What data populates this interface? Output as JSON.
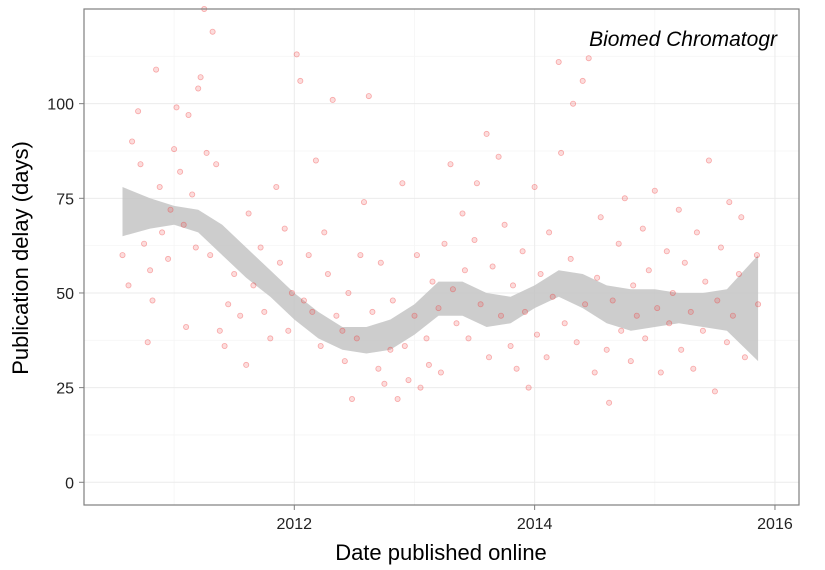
{
  "chart_data": {
    "type": "scatter",
    "title": "Biomed Chromatogr",
    "xlabel": "Date published online",
    "ylabel": "Publication delay (days)",
    "xlim": [
      2010.25,
      2016.2
    ],
    "ylim": [
      -6,
      125
    ],
    "x_ticks": [
      2012,
      2014,
      2016
    ],
    "y_ticks": [
      0,
      25,
      50,
      75,
      100
    ],
    "x_tick_labels": [
      "2012",
      "2014",
      "2016"
    ],
    "y_tick_labels": [
      "0",
      "25",
      "50",
      "75",
      "100"
    ],
    "grid": true,
    "colors": {
      "points": "#ef3b3b",
      "band": "#c4c4c4",
      "border": "#7f7f7f",
      "grid_major": "#ebebeb",
      "grid_minor": "#f5f5f5"
    },
    "scatter_series": [
      {
        "points": [
          [
            2010.57,
            60
          ],
          [
            2010.62,
            52
          ],
          [
            2010.65,
            90
          ],
          [
            2010.7,
            98
          ],
          [
            2010.72,
            84
          ],
          [
            2010.75,
            63
          ],
          [
            2010.78,
            37
          ],
          [
            2010.8,
            56
          ],
          [
            2010.82,
            48
          ],
          [
            2010.85,
            109
          ],
          [
            2010.88,
            78
          ],
          [
            2010.9,
            66
          ],
          [
            2010.95,
            59
          ],
          [
            2010.97,
            72
          ],
          [
            2011.0,
            88
          ],
          [
            2011.02,
            99
          ],
          [
            2011.05,
            82
          ],
          [
            2011.08,
            68
          ],
          [
            2011.1,
            41
          ],
          [
            2011.12,
            97
          ],
          [
            2011.15,
            76
          ],
          [
            2011.18,
            62
          ],
          [
            2011.2,
            104
          ],
          [
            2011.22,
            107
          ],
          [
            2011.25,
            125
          ],
          [
            2011.27,
            87
          ],
          [
            2011.3,
            60
          ],
          [
            2011.32,
            119
          ],
          [
            2011.35,
            84
          ],
          [
            2011.38,
            40
          ],
          [
            2011.42,
            36
          ],
          [
            2011.45,
            47
          ],
          [
            2011.5,
            55
          ],
          [
            2011.55,
            44
          ],
          [
            2011.6,
            31
          ],
          [
            2011.62,
            71
          ],
          [
            2011.66,
            52
          ],
          [
            2011.72,
            62
          ],
          [
            2011.75,
            45
          ],
          [
            2011.8,
            38
          ],
          [
            2011.85,
            78
          ],
          [
            2011.88,
            58
          ],
          [
            2011.92,
            67
          ],
          [
            2011.95,
            40
          ],
          [
            2011.98,
            50
          ],
          [
            2012.02,
            113
          ],
          [
            2012.05,
            106
          ],
          [
            2012.08,
            48
          ],
          [
            2012.12,
            60
          ],
          [
            2012.15,
            45
          ],
          [
            2012.18,
            85
          ],
          [
            2012.22,
            36
          ],
          [
            2012.25,
            66
          ],
          [
            2012.28,
            55
          ],
          [
            2012.32,
            101
          ],
          [
            2012.35,
            44
          ],
          [
            2012.4,
            40
          ],
          [
            2012.42,
            32
          ],
          [
            2012.45,
            50
          ],
          [
            2012.48,
            22
          ],
          [
            2012.52,
            38
          ],
          [
            2012.55,
            60
          ],
          [
            2012.58,
            74
          ],
          [
            2012.62,
            102
          ],
          [
            2012.65,
            45
          ],
          [
            2012.7,
            30
          ],
          [
            2012.72,
            58
          ],
          [
            2012.75,
            26
          ],
          [
            2012.8,
            35
          ],
          [
            2012.82,
            48
          ],
          [
            2012.86,
            22
          ],
          [
            2012.9,
            79
          ],
          [
            2012.92,
            36
          ],
          [
            2012.95,
            27
          ],
          [
            2013.0,
            44
          ],
          [
            2013.02,
            60
          ],
          [
            2013.05,
            25
          ],
          [
            2013.1,
            38
          ],
          [
            2013.12,
            31
          ],
          [
            2013.15,
            53
          ],
          [
            2013.2,
            46
          ],
          [
            2013.22,
            29
          ],
          [
            2013.25,
            63
          ],
          [
            2013.3,
            84
          ],
          [
            2013.32,
            51
          ],
          [
            2013.35,
            42
          ],
          [
            2013.4,
            71
          ],
          [
            2013.42,
            56
          ],
          [
            2013.45,
            38
          ],
          [
            2013.5,
            64
          ],
          [
            2013.52,
            79
          ],
          [
            2013.55,
            47
          ],
          [
            2013.6,
            92
          ],
          [
            2013.62,
            33
          ],
          [
            2013.65,
            57
          ],
          [
            2013.7,
            86
          ],
          [
            2013.72,
            44
          ],
          [
            2013.75,
            68
          ],
          [
            2013.8,
            36
          ],
          [
            2013.82,
            52
          ],
          [
            2013.85,
            30
          ],
          [
            2013.9,
            61
          ],
          [
            2013.92,
            45
          ],
          [
            2013.95,
            25
          ],
          [
            2014.0,
            78
          ],
          [
            2014.02,
            39
          ],
          [
            2014.05,
            55
          ],
          [
            2014.1,
            33
          ],
          [
            2014.12,
            66
          ],
          [
            2014.15,
            49
          ],
          [
            2014.2,
            111
          ],
          [
            2014.22,
            87
          ],
          [
            2014.25,
            42
          ],
          [
            2014.3,
            59
          ],
          [
            2014.32,
            100
          ],
          [
            2014.35,
            37
          ],
          [
            2014.4,
            106
          ],
          [
            2014.42,
            47
          ],
          [
            2014.45,
            112
          ],
          [
            2014.5,
            29
          ],
          [
            2014.52,
            54
          ],
          [
            2014.55,
            70
          ],
          [
            2014.6,
            35
          ],
          [
            2014.62,
            21
          ],
          [
            2014.65,
            48
          ],
          [
            2014.7,
            63
          ],
          [
            2014.72,
            40
          ],
          [
            2014.75,
            75
          ],
          [
            2014.8,
            32
          ],
          [
            2014.82,
            52
          ],
          [
            2014.85,
            44
          ],
          [
            2014.9,
            67
          ],
          [
            2014.92,
            38
          ],
          [
            2014.95,
            56
          ],
          [
            2015.0,
            77
          ],
          [
            2015.02,
            46
          ],
          [
            2015.05,
            29
          ],
          [
            2015.1,
            61
          ],
          [
            2015.12,
            42
          ],
          [
            2015.15,
            50
          ],
          [
            2015.2,
            72
          ],
          [
            2015.22,
            35
          ],
          [
            2015.25,
            58
          ],
          [
            2015.3,
            45
          ],
          [
            2015.32,
            30
          ],
          [
            2015.35,
            66
          ],
          [
            2015.4,
            40
          ],
          [
            2015.42,
            53
          ],
          [
            2015.45,
            85
          ],
          [
            2015.5,
            24
          ],
          [
            2015.52,
            48
          ],
          [
            2015.55,
            62
          ],
          [
            2015.6,
            37
          ],
          [
            2015.62,
            74
          ],
          [
            2015.65,
            44
          ],
          [
            2015.7,
            55
          ],
          [
            2015.72,
            70
          ],
          [
            2015.75,
            33
          ],
          [
            2015.85,
            60
          ],
          [
            2015.86,
            47
          ]
        ]
      }
    ],
    "smooth": {
      "method": "loess",
      "x": [
        2010.57,
        2010.8,
        2011.0,
        2011.2,
        2011.4,
        2011.6,
        2011.8,
        2012.0,
        2012.2,
        2012.4,
        2012.6,
        2012.8,
        2013.0,
        2013.2,
        2013.4,
        2013.6,
        2013.8,
        2014.0,
        2014.2,
        2014.4,
        2014.6,
        2014.8,
        2015.0,
        2015.2,
        2015.4,
        2015.6,
        2015.86
      ],
      "lower": [
        65,
        67,
        68,
        66,
        60,
        54,
        49,
        43,
        38,
        35,
        34,
        35,
        39,
        44,
        44,
        41,
        42,
        46,
        49,
        46,
        42,
        40,
        41,
        42,
        41,
        40,
        32
      ],
      "upper": [
        78,
        75,
        73,
        72,
        68,
        62,
        56,
        50,
        45,
        41,
        41,
        43,
        47,
        53,
        53,
        50,
        49,
        52,
        56,
        55,
        52,
        51,
        51,
        50,
        50,
        51,
        60
      ]
    }
  }
}
